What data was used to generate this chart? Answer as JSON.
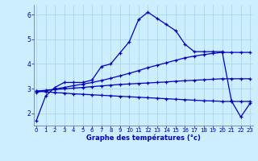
{
  "xlabel": "Graphe des températures (°c)",
  "background_color": "#cceeff",
  "grid_color": "#aaddee",
  "line_color": "#0000bb",
  "x_ticks": [
    0,
    1,
    2,
    3,
    4,
    5,
    6,
    7,
    8,
    9,
    10,
    11,
    12,
    13,
    14,
    15,
    16,
    17,
    18,
    19,
    20,
    21,
    22,
    23
  ],
  "y_ticks": [
    2,
    3,
    4,
    5,
    6
  ],
  "ylim": [
    1.5,
    6.4
  ],
  "xlim": [
    -0.3,
    23.3
  ],
  "curve1_x": [
    0,
    1,
    2,
    3,
    4,
    5,
    6,
    7,
    8,
    9,
    10,
    11,
    12,
    13,
    14,
    15,
    16,
    17,
    18,
    19,
    20,
    21,
    22,
    23
  ],
  "curve1_y": [
    1.7,
    2.7,
    3.05,
    3.25,
    3.25,
    3.25,
    3.35,
    3.9,
    4.0,
    4.45,
    4.9,
    5.8,
    6.1,
    5.85,
    5.6,
    5.35,
    4.8,
    4.5,
    4.5,
    4.5,
    4.5,
    2.5,
    1.85,
    2.4
  ],
  "curve2_x": [
    0,
    1,
    2,
    3,
    4,
    5,
    6,
    7,
    8,
    9,
    10,
    11,
    12,
    13,
    14,
    15,
    16,
    17,
    18,
    19,
    20,
    21,
    22,
    23
  ],
  "curve2_y": [
    2.85,
    2.92,
    2.98,
    3.05,
    3.12,
    3.18,
    3.25,
    3.33,
    3.42,
    3.52,
    3.62,
    3.73,
    3.85,
    3.95,
    4.05,
    4.15,
    4.25,
    4.32,
    4.38,
    4.43,
    4.47,
    4.47,
    4.47,
    4.47
  ],
  "curve3_x": [
    0,
    1,
    2,
    3,
    4,
    5,
    6,
    7,
    8,
    9,
    10,
    11,
    12,
    13,
    14,
    15,
    16,
    17,
    18,
    19,
    20,
    21,
    22,
    23
  ],
  "curve3_y": [
    2.9,
    2.93,
    2.96,
    2.99,
    3.02,
    3.05,
    3.08,
    3.11,
    3.14,
    3.17,
    3.19,
    3.21,
    3.23,
    3.25,
    3.27,
    3.3,
    3.32,
    3.34,
    3.36,
    3.38,
    3.4,
    3.4,
    3.4,
    3.4
  ],
  "curve4_x": [
    0,
    1,
    2,
    3,
    4,
    5,
    6,
    7,
    8,
    9,
    10,
    11,
    12,
    13,
    14,
    15,
    16,
    17,
    18,
    19,
    20,
    21,
    22,
    23
  ],
  "curve4_y": [
    2.9,
    2.87,
    2.84,
    2.82,
    2.79,
    2.77,
    2.75,
    2.73,
    2.71,
    2.69,
    2.67,
    2.65,
    2.63,
    2.61,
    2.59,
    2.57,
    2.55,
    2.53,
    2.51,
    2.5,
    2.48,
    2.48,
    2.48,
    2.48
  ]
}
